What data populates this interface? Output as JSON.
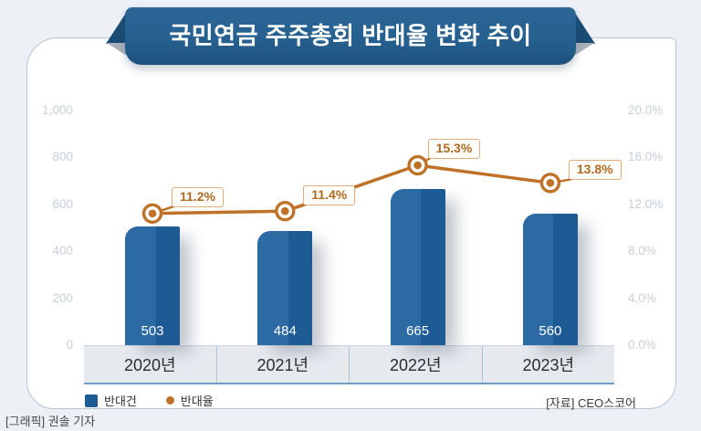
{
  "page": {
    "source": "[자료] CEO스코어",
    "credit": "[그래픽] 권솔 기자"
  },
  "chart_data": {
    "type": "bar",
    "subtype": "bar+line combo",
    "title": "국민연금 주주총회 반대율 변화 추이",
    "categories": [
      "2020년",
      "2021년",
      "2022년",
      "2023년"
    ],
    "series": [
      {
        "name": "반대건",
        "type": "bar",
        "axis": "left",
        "values": [
          503,
          484,
          665,
          560
        ],
        "labels": [
          "503",
          "484",
          "665",
          "560"
        ],
        "color": "#2c6aa4"
      },
      {
        "name": "반대율",
        "type": "line",
        "axis": "right",
        "values": [
          11.2,
          11.4,
          15.3,
          13.8
        ],
        "labels": [
          "11.2%",
          "11.4%",
          "15.3%",
          "13.8%"
        ],
        "color": "#bf7127"
      }
    ],
    "left_axis": {
      "min": 0,
      "max": 1000,
      "ticks": [
        "0",
        "200",
        "400",
        "600",
        "800",
        "1,000"
      ]
    },
    "right_axis": {
      "min": 0,
      "max": 20,
      "ticks": [
        "0.0%",
        "4.0%",
        "8.0%",
        "12.0%",
        "16.0%",
        "20.0%"
      ]
    },
    "grid": false,
    "legend_position": "bottom-left",
    "colors": {
      "bar_light": "#2c6aa4",
      "bar_dark": "#1e5b94",
      "line": "#bf7127",
      "ribbon": "#26608f",
      "callout_border": "#dfae7c",
      "callout_text": "#ad6b26"
    }
  }
}
